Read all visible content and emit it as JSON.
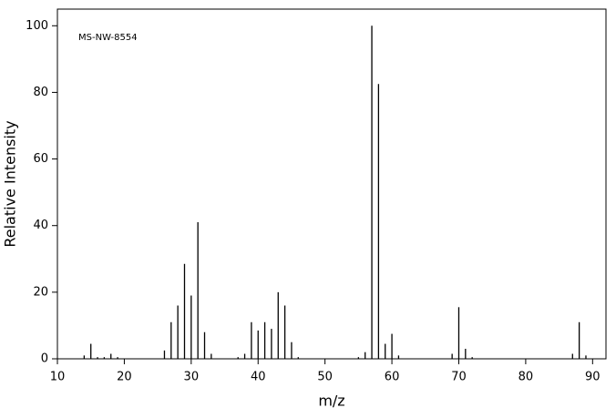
{
  "chart_data": {
    "type": "bar",
    "annotation": "MS-NW-8554",
    "xlabel": "m/z",
    "ylabel": "Relative Intensity",
    "x": [
      14,
      15,
      16,
      17,
      18,
      19,
      26,
      27,
      28,
      29,
      30,
      31,
      32,
      33,
      37,
      38,
      39,
      40,
      41,
      42,
      43,
      44,
      45,
      46,
      55,
      56,
      57,
      58,
      59,
      60,
      61,
      69,
      70,
      71,
      72,
      87,
      88,
      89
    ],
    "values": [
      1,
      4.5,
      0.5,
      0.5,
      1.5,
      0.5,
      2.5,
      11,
      16,
      28.5,
      19,
      41,
      8,
      1.5,
      0.5,
      1.5,
      11,
      8.5,
      11,
      9,
      20,
      16,
      5,
      0.5,
      0.5,
      2,
      100,
      82.5,
      4.5,
      7.5,
      1,
      1.5,
      15.5,
      3,
      0.5,
      1.5,
      11,
      1
    ],
    "color": "#000000",
    "xlim": [
      10,
      92
    ],
    "xticks": [
      10,
      20,
      30,
      40,
      50,
      60,
      70,
      80,
      90
    ],
    "ylim": [
      0,
      105
    ],
    "yticks": [
      0,
      20,
      40,
      60,
      80,
      100
    ]
  }
}
